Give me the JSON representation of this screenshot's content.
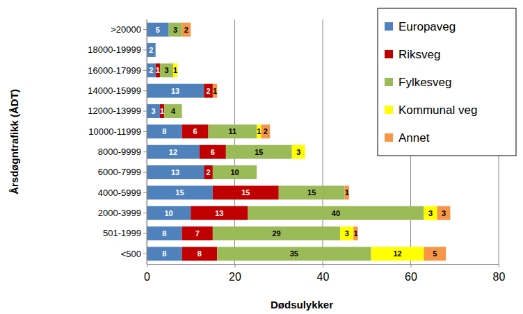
{
  "chart_data": {
    "type": "bar",
    "orientation": "horizontal",
    "stacked": true,
    "data_labels": true,
    "grid": true,
    "legend": "upper right",
    "x_label": "Dødsulykker",
    "y_label": "Årsdøgntrafikk (ÅDT)",
    "categories": [
      "<500",
      "501-1999",
      "2000-3999",
      "4000-5999",
      "6000-7999",
      "8000-9999",
      "10000-11999",
      "12000-13999",
      "14000-15999",
      "16000-17999",
      "18000-19999",
      ">20000"
    ],
    "xlim": [
      0,
      80
    ],
    "xticks": [
      0,
      20,
      40,
      60,
      80
    ],
    "series": [
      {
        "name": "Europaveg",
        "color": "#4f81bd",
        "values": [
          8,
          8,
          10,
          15,
          13,
          12,
          8,
          3,
          13,
          2,
          2,
          5
        ]
      },
      {
        "name": "Riksveg",
        "color": "#c00000",
        "values": [
          8,
          7,
          13,
          15,
          2,
          6,
          6,
          1,
          2,
          1,
          null,
          null
        ]
      },
      {
        "name": "Fylkesveg",
        "color": "#9bbb59",
        "values": [
          35,
          29,
          40,
          15,
          10,
          15,
          11,
          4,
          null,
          3,
          null,
          3
        ]
      },
      {
        "name": "Kommunal veg",
        "color": "#ffff00",
        "values": [
          12,
          3,
          3,
          null,
          null,
          3,
          1,
          null,
          null,
          1,
          null,
          null
        ]
      },
      {
        "name": "Annet",
        "color": "#f79646",
        "values": [
          5,
          1,
          3,
          1,
          null,
          null,
          2,
          null,
          1,
          null,
          null,
          2
        ]
      }
    ]
  }
}
